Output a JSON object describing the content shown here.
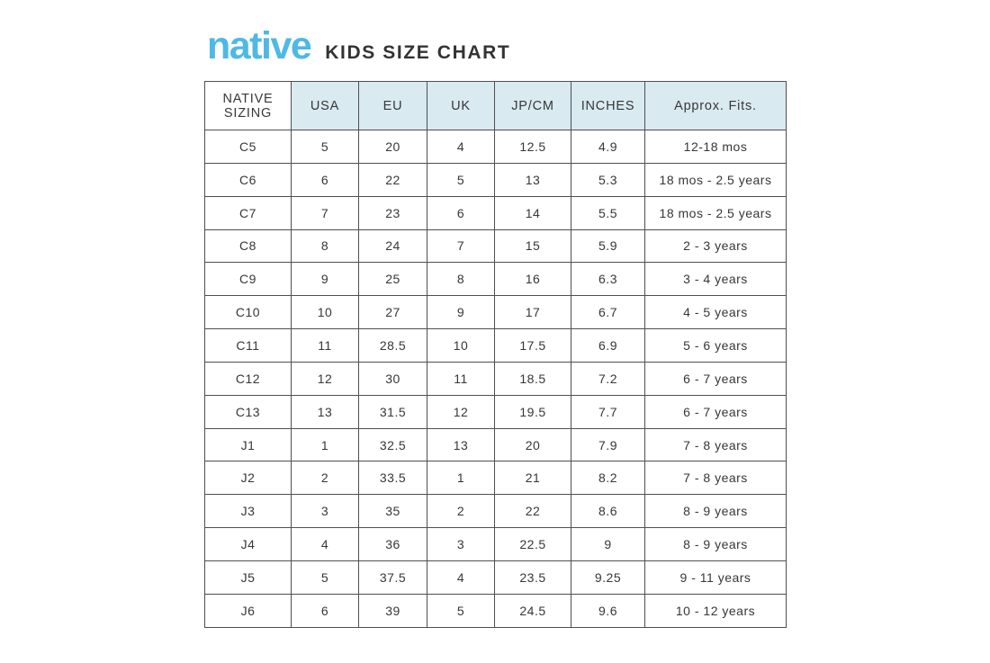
{
  "page": {
    "logo_text": "native",
    "title": "KIDS SIZE CHART"
  },
  "colors": {
    "logo_blue": "#4fb9e5",
    "header_bg": "#d9eaf1",
    "border": "#4f4f4f",
    "text": "#373737"
  },
  "table": {
    "columns": [
      "NATIVE SIZING",
      "USA",
      "EU",
      "UK",
      "JP/CM",
      "INCHES",
      "Approx. Fits."
    ],
    "column_keys": [
      "native-sizing",
      "usa",
      "eu",
      "uk",
      "jp-cm",
      "inches",
      "approx-fits"
    ],
    "rows": [
      [
        "C5",
        "5",
        "20",
        "4",
        "12.5",
        "4.9",
        "12-18 mos"
      ],
      [
        "C6",
        "6",
        "22",
        "5",
        "13",
        "5.3",
        "18 mos - 2.5 years"
      ],
      [
        "C7",
        "7",
        "23",
        "6",
        "14",
        "5.5",
        "18 mos - 2.5 years"
      ],
      [
        "C8",
        "8",
        "24",
        "7",
        "15",
        "5.9",
        "2 - 3 years"
      ],
      [
        "C9",
        "9",
        "25",
        "8",
        "16",
        "6.3",
        "3 - 4 years"
      ],
      [
        "C10",
        "10",
        "27",
        "9",
        "17",
        "6.7",
        "4 - 5 years"
      ],
      [
        "C11",
        "11",
        "28.5",
        "10",
        "17.5",
        "6.9",
        "5 - 6 years"
      ],
      [
        "C12",
        "12",
        "30",
        "11",
        "18.5",
        "7.2",
        "6 - 7 years"
      ],
      [
        "C13",
        "13",
        "31.5",
        "12",
        "19.5",
        "7.7",
        "6 - 7 years"
      ],
      [
        "J1",
        "1",
        "32.5",
        "13",
        "20",
        "7.9",
        "7 - 8 years"
      ],
      [
        "J2",
        "2",
        "33.5",
        "1",
        "21",
        "8.2",
        "7 - 8 years"
      ],
      [
        "J3",
        "3",
        "35",
        "2",
        "22",
        "8.6",
        "8 - 9 years"
      ],
      [
        "J4",
        "4",
        "36",
        "3",
        "22.5",
        "9",
        "8 - 9 years"
      ],
      [
        "J5",
        "5",
        "37.5",
        "4",
        "23.5",
        "9.25",
        "9 - 11 years"
      ],
      [
        "J6",
        "6",
        "39",
        "5",
        "24.5",
        "9.6",
        "10 - 12 years"
      ]
    ]
  }
}
